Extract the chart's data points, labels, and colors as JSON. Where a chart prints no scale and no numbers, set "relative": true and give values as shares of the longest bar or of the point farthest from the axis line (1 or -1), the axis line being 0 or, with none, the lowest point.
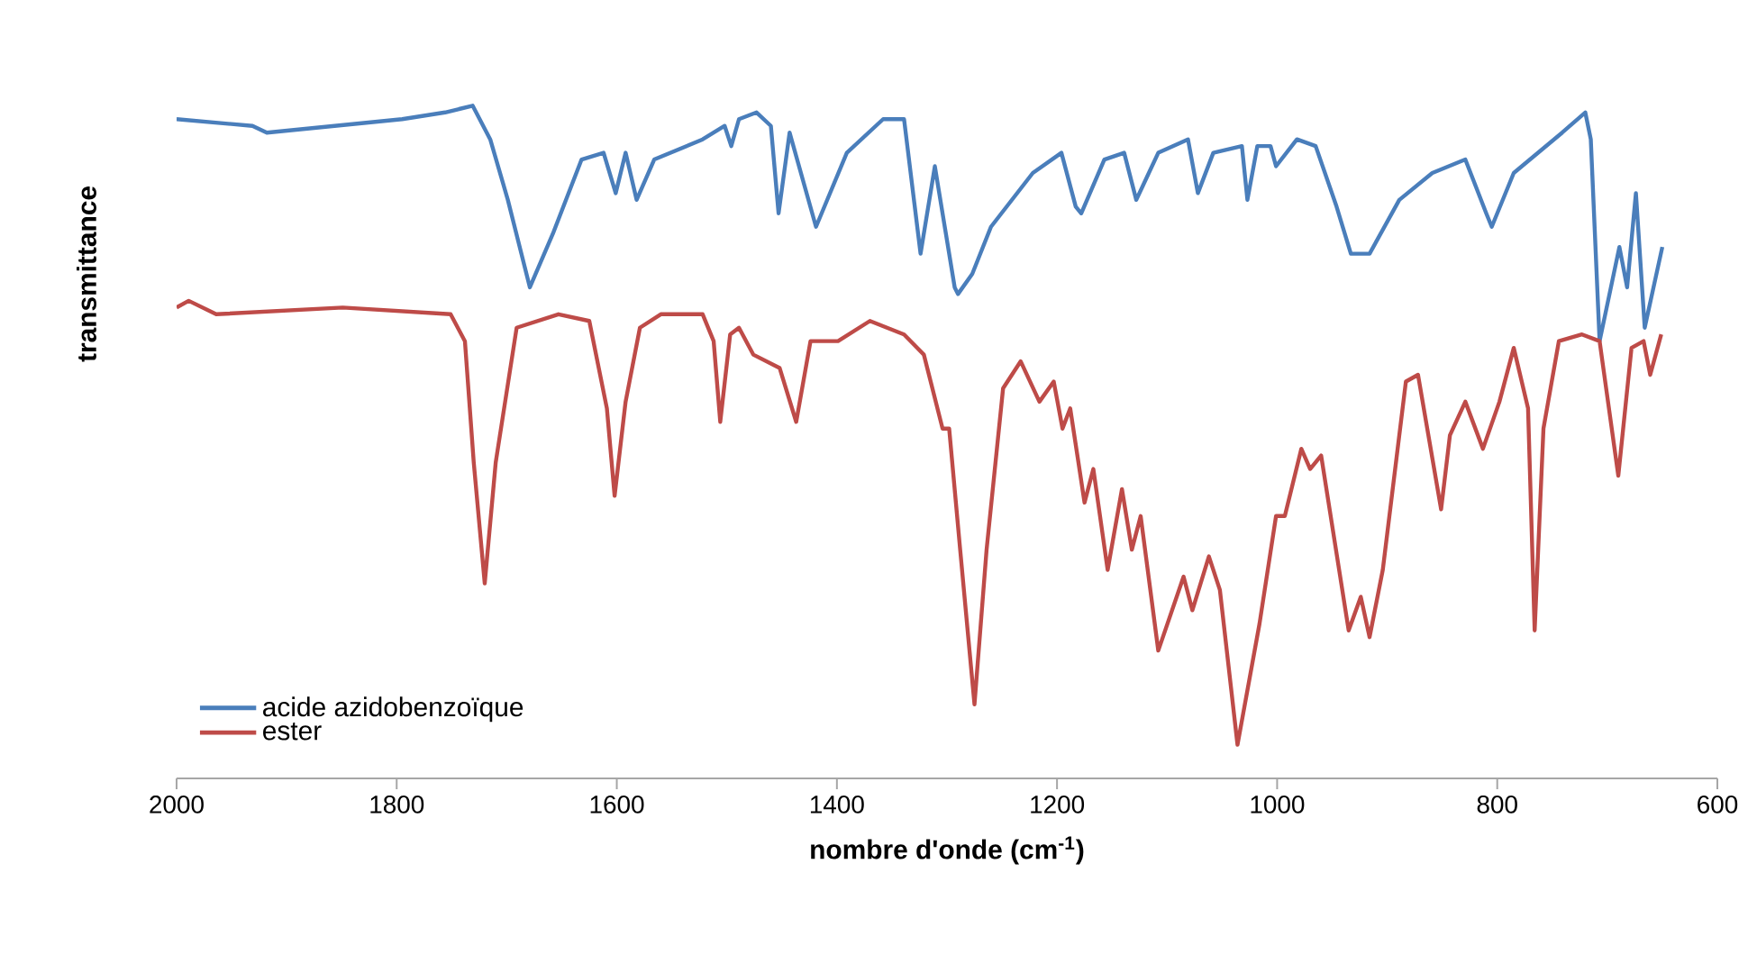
{
  "chart_data": {
    "type": "line",
    "relative": true,
    "xlabel": "nombre d'onde (cm$^{-1}$)",
    "ylabel": "transmittance",
    "xlim": [
      2000,
      600
    ],
    "xticks": [
      2000,
      1800,
      1600,
      1400,
      1200,
      1000,
      800,
      600
    ],
    "legend": "bottom left",
    "grid": false,
    "marker": "none",
    "line_style": "solid",
    "series": [
      {
        "name": "acide azidobenzoïque",
        "color": "#4a7ebb",
        "x": [
          2000,
          1931,
          1918,
          1795,
          1756,
          1731,
          1715,
          1699,
          1679,
          1658,
          1632,
          1612,
          1601,
          1592,
          1582,
          1566,
          1522,
          1502,
          1496,
          1489,
          1473,
          1460,
          1453,
          1443,
          1419,
          1391,
          1358,
          1339,
          1324,
          1311,
          1293,
          1290,
          1277,
          1260,
          1222,
          1196,
          1183,
          1178,
          1157,
          1139,
          1128,
          1108,
          1081,
          1072,
          1058,
          1032,
          1027,
          1018,
          1006,
          1001,
          982,
          965,
          946,
          933,
          916,
          889,
          859,
          829,
          810,
          805,
          785,
          741,
          720,
          715,
          707,
          689,
          682,
          674,
          666,
          650
        ],
        "values": [
          0.98,
          0.97,
          0.96,
          0.98,
          0.99,
          1.0,
          0.95,
          0.86,
          0.73,
          0.81,
          0.92,
          0.93,
          0.87,
          0.93,
          0.86,
          0.92,
          0.95,
          0.97,
          0.94,
          0.98,
          0.99,
          0.97,
          0.84,
          0.96,
          0.82,
          0.93,
          0.98,
          0.98,
          0.78,
          0.91,
          0.73,
          0.72,
          0.75,
          0.82,
          0.9,
          0.93,
          0.85,
          0.84,
          0.92,
          0.93,
          0.86,
          0.93,
          0.95,
          0.87,
          0.93,
          0.94,
          0.86,
          0.94,
          0.94,
          0.91,
          0.95,
          0.94,
          0.85,
          0.78,
          0.78,
          0.86,
          0.9,
          0.92,
          0.84,
          0.82,
          0.9,
          0.96,
          0.99,
          0.95,
          0.65,
          0.79,
          0.73,
          0.87,
          0.67,
          0.79
        ]
      },
      {
        "name": "ester",
        "color": "#be4b48",
        "x": [
          2000,
          1989,
          1964,
          1849,
          1751,
          1738,
          1730,
          1720,
          1710,
          1691,
          1653,
          1625,
          1609,
          1602,
          1592,
          1579,
          1560,
          1522,
          1512,
          1506,
          1497,
          1489,
          1476,
          1452,
          1437,
          1424,
          1399,
          1370,
          1339,
          1321,
          1304,
          1298,
          1288,
          1275,
          1264,
          1249,
          1233,
          1216,
          1203,
          1195,
          1188,
          1175,
          1167,
          1154,
          1141,
          1132,
          1124,
          1108,
          1085,
          1077,
          1062,
          1052,
          1036,
          1016,
          1001,
          993,
          978,
          970,
          960,
          935,
          924,
          916,
          904,
          883,
          872,
          851,
          843,
          829,
          813,
          798,
          785,
          772,
          766,
          758,
          744,
          723,
          707,
          690,
          678,
          667,
          661,
          651
        ],
        "values": [
          0.7,
          0.71,
          0.69,
          0.7,
          0.69,
          0.65,
          0.47,
          0.29,
          0.47,
          0.67,
          0.69,
          0.68,
          0.55,
          0.42,
          0.56,
          0.67,
          0.69,
          0.69,
          0.65,
          0.53,
          0.66,
          0.67,
          0.63,
          0.61,
          0.53,
          0.65,
          0.65,
          0.68,
          0.66,
          0.63,
          0.52,
          0.52,
          0.34,
          0.11,
          0.34,
          0.58,
          0.62,
          0.56,
          0.59,
          0.52,
          0.55,
          0.41,
          0.46,
          0.31,
          0.43,
          0.34,
          0.39,
          0.19,
          0.3,
          0.25,
          0.33,
          0.28,
          0.05,
          0.23,
          0.39,
          0.39,
          0.49,
          0.46,
          0.48,
          0.22,
          0.27,
          0.21,
          0.31,
          0.59,
          0.6,
          0.4,
          0.51,
          0.56,
          0.49,
          0.56,
          0.64,
          0.55,
          0.22,
          0.52,
          0.65,
          0.66,
          0.65,
          0.45,
          0.64,
          0.65,
          0.6,
          0.66
        ]
      }
    ]
  }
}
